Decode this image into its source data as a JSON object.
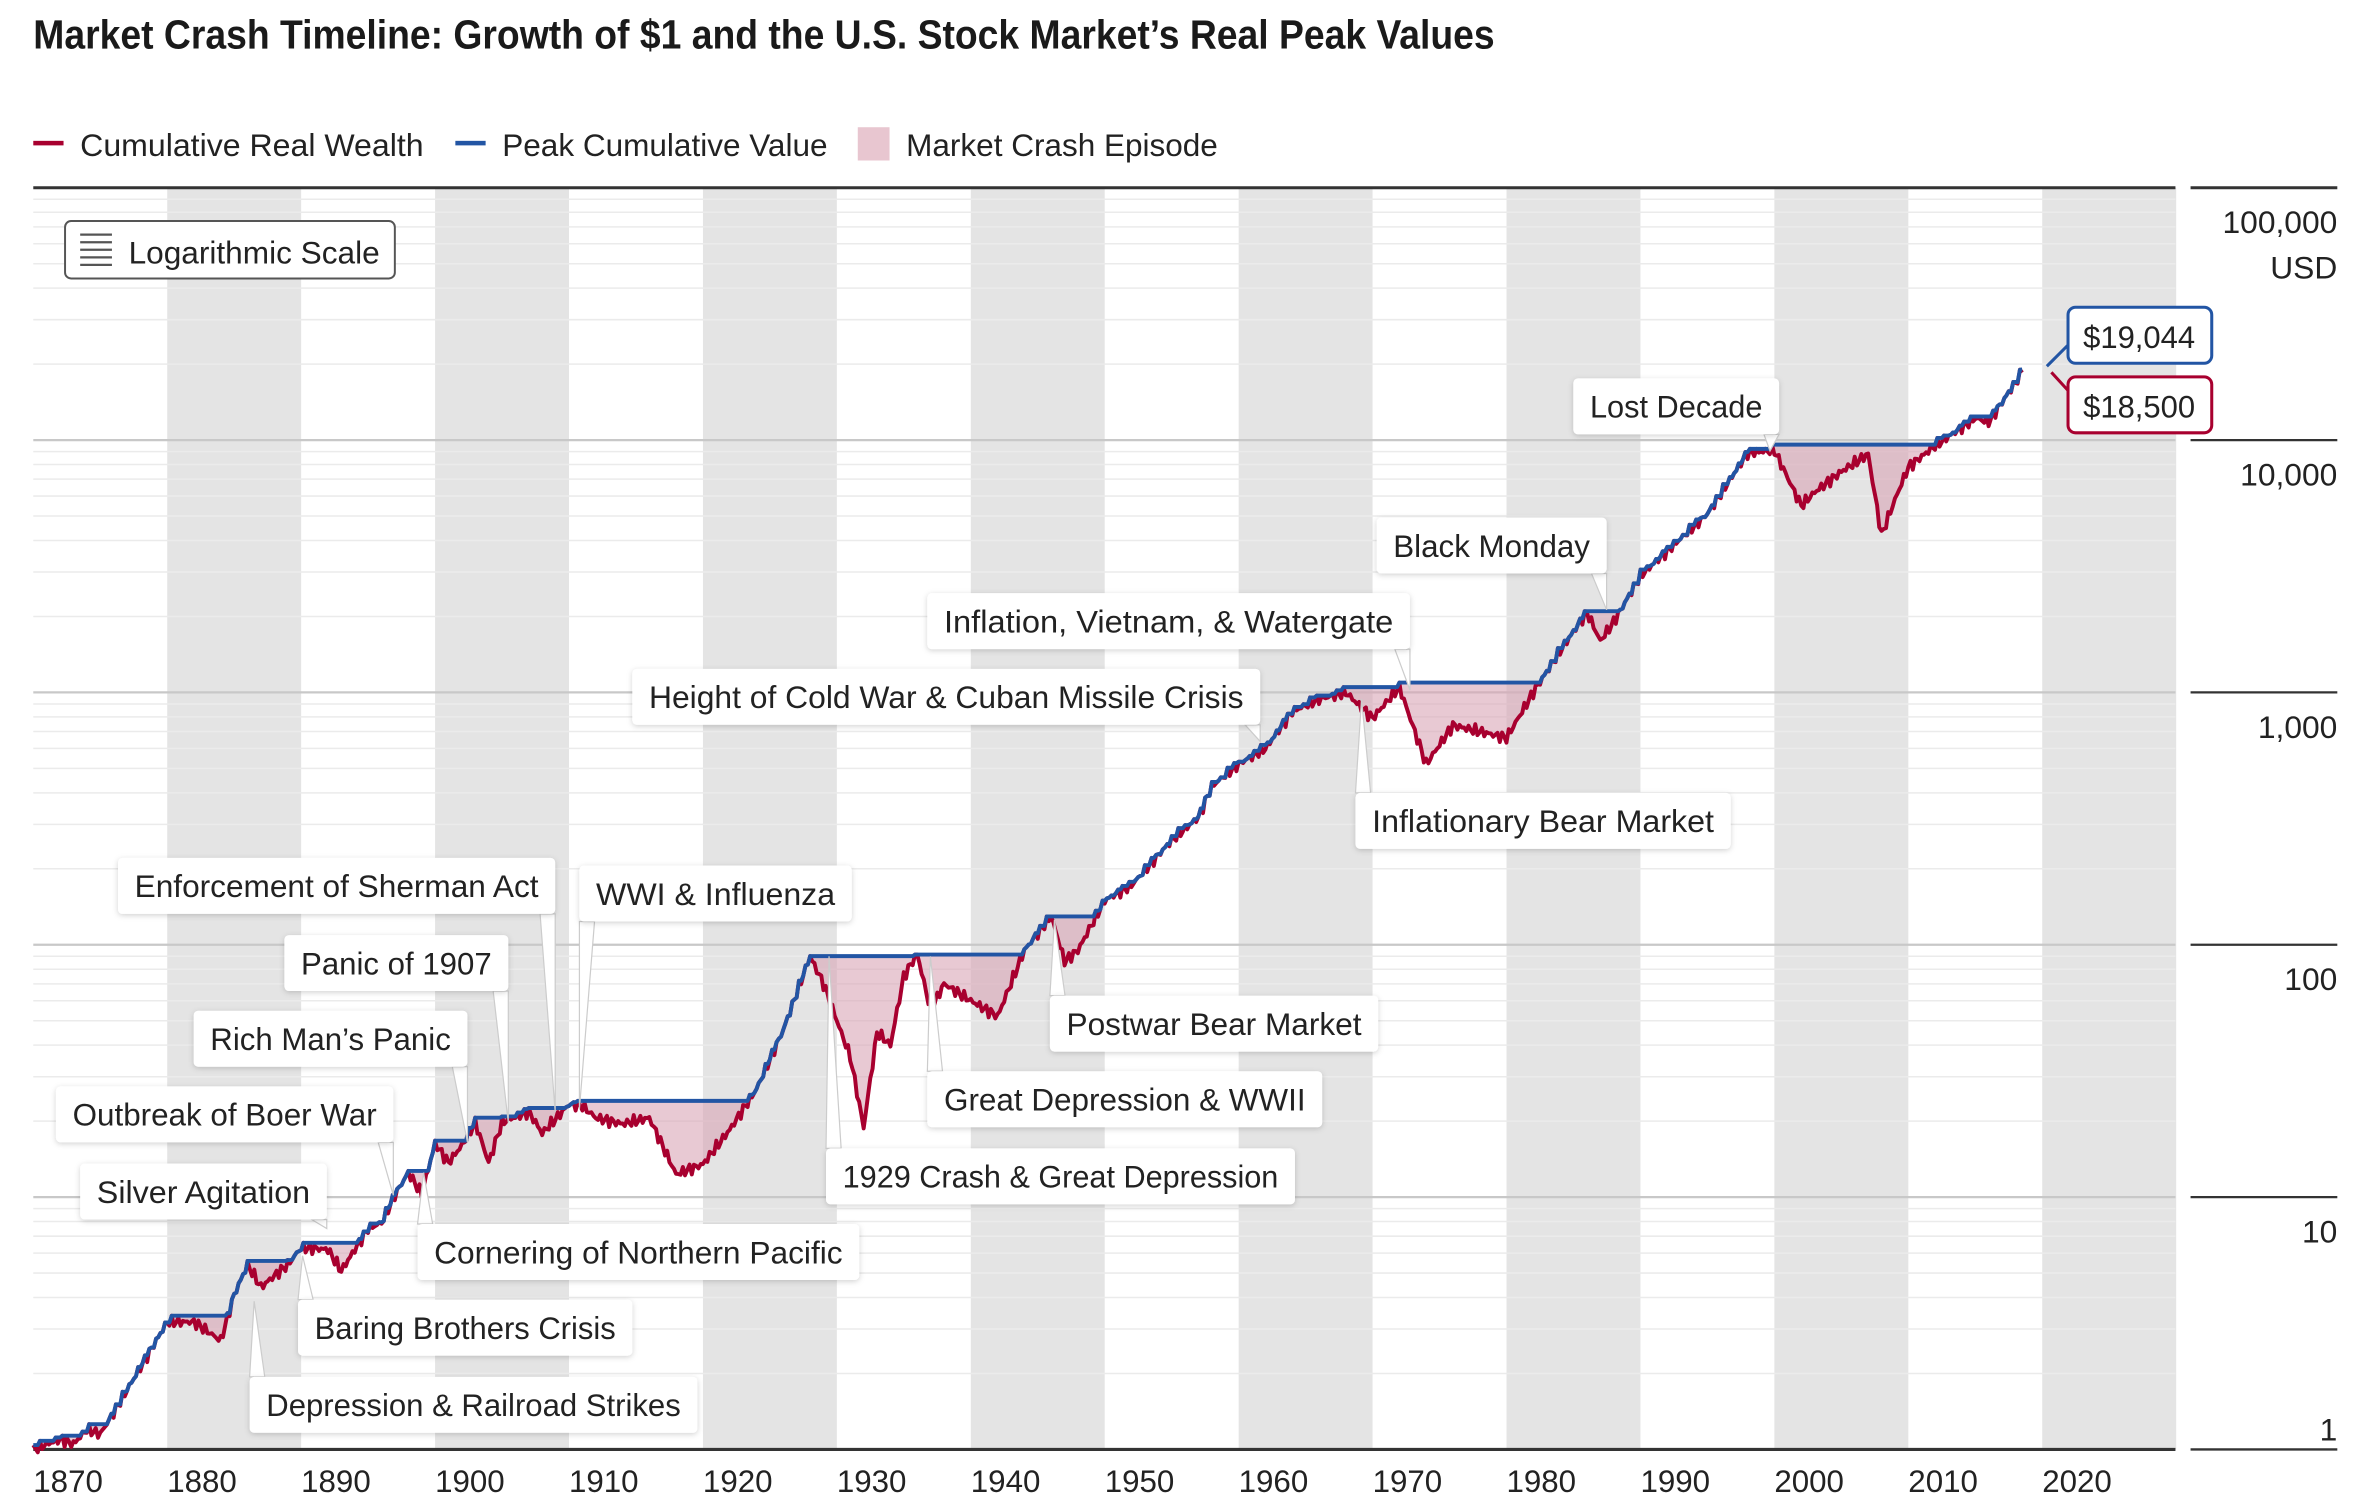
{
  "chart_data": {
    "type": "line",
    "title": "Market Crash Timeline: Growth of $1 and the U.S. Stock Market’s Real Peak Values",
    "legend": {
      "position": "top-left",
      "items": [
        {
          "label": "Cumulative Real Wealth",
          "color": "#A8002F"
        },
        {
          "label": "Peak Cumulative Value",
          "color": "#2255A4"
        },
        {
          "label": "Market Crash Episode",
          "color": "#E8C6D0"
        }
      ]
    },
    "scale_button": "Logarithmic Scale",
    "y_axis": {
      "scale": "log",
      "unit": "USD",
      "range": [
        1,
        100000
      ],
      "ticks": [
        {
          "v": 1,
          "t": "1"
        },
        {
          "v": 10,
          "t": "10"
        },
        {
          "v": 100,
          "t": "100"
        },
        {
          "v": 1000,
          "t": "1,000"
        },
        {
          "v": 10000,
          "t": "10,000"
        },
        {
          "v": 100000,
          "t": "100,000"
        }
      ]
    },
    "x_axis": {
      "range": [
        1870,
        2030
      ],
      "ticks": [
        1870,
        1880,
        1890,
        1900,
        1910,
        1920,
        1930,
        1940,
        1950,
        1960,
        1970,
        1980,
        1990,
        2000,
        2010,
        2020
      ]
    },
    "shaded_decades": [
      1880,
      1900,
      1920,
      1940,
      1960,
      1980,
      2000,
      2020
    ],
    "series": [
      {
        "name": "Cumulative Real Wealth",
        "points": [
          [
            1870,
            1
          ],
          [
            1872,
            1.1
          ],
          [
            1873,
            1.05
          ],
          [
            1874,
            1.2
          ],
          [
            1875,
            1.15
          ],
          [
            1876,
            1.4
          ],
          [
            1880,
            3.2
          ],
          [
            1882,
            3.2
          ],
          [
            1884,
            2.7
          ],
          [
            1885,
            4.1
          ],
          [
            1886,
            5.4
          ],
          [
            1887,
            4.4
          ],
          [
            1889,
            5.4
          ],
          [
            1890,
            6.3
          ],
          [
            1892,
            6.2
          ],
          [
            1893,
            5.1
          ],
          [
            1895,
            7.5
          ],
          [
            1896,
            7.9
          ],
          [
            1897,
            10.2
          ],
          [
            1898,
            12.5
          ],
          [
            1899,
            10.3
          ],
          [
            1900,
            16.3
          ],
          [
            1901,
            13.7
          ],
          [
            1902,
            16
          ],
          [
            1903,
            19.8
          ],
          [
            1904,
            13.7
          ],
          [
            1905,
            19.8
          ],
          [
            1907,
            21.8
          ],
          [
            1908,
            17.9
          ],
          [
            1910,
            23.3
          ],
          [
            1911,
            23
          ],
          [
            1912,
            20.6
          ],
          [
            1914,
            19.5
          ],
          [
            1916,
            20.6
          ],
          [
            1918,
            12.3
          ],
          [
            1920,
            13.5
          ],
          [
            1922,
            18.5
          ],
          [
            1924,
            26.8
          ],
          [
            1926,
            46
          ],
          [
            1928,
            90
          ],
          [
            1929,
            70
          ],
          [
            1930,
            50
          ],
          [
            1931,
            36
          ],
          [
            1932,
            18.9
          ],
          [
            1933,
            45
          ],
          [
            1934,
            40
          ],
          [
            1935,
            75
          ],
          [
            1936,
            92
          ],
          [
            1937,
            55
          ],
          [
            1938,
            70
          ],
          [
            1940,
            60
          ],
          [
            1942,
            52
          ],
          [
            1944,
            95
          ],
          [
            1946,
            130
          ],
          [
            1947,
            86
          ],
          [
            1948,
            95
          ],
          [
            1950,
            150
          ],
          [
            1952,
            172
          ],
          [
            1955,
            260
          ],
          [
            1957,
            320
          ],
          [
            1958,
            425
          ],
          [
            1960,
            520
          ],
          [
            1962,
            600
          ],
          [
            1964,
            840
          ],
          [
            1966,
            940
          ],
          [
            1968,
            1000
          ],
          [
            1970,
            790
          ],
          [
            1972,
            1050
          ],
          [
            1974,
            520
          ],
          [
            1976,
            740
          ],
          [
            1978,
            700
          ],
          [
            1980,
            660
          ],
          [
            1982,
            1000
          ],
          [
            1984,
            1460
          ],
          [
            1986,
            2080
          ],
          [
            1987,
            1600
          ],
          [
            1988,
            1900
          ],
          [
            1990,
            2900
          ],
          [
            1995,
            5100
          ],
          [
            1998,
            8900
          ],
          [
            2000,
            9100
          ],
          [
            2002,
            5500
          ],
          [
            2003,
            6200
          ],
          [
            2005,
            7500
          ],
          [
            2007,
            8800
          ],
          [
            2008,
            4200
          ],
          [
            2009,
            5800
          ],
          [
            2010,
            7800
          ],
          [
            2012,
            9500
          ],
          [
            2015,
            12200
          ],
          [
            2016,
            11800
          ],
          [
            2018.5,
            18500
          ]
        ]
      },
      {
        "name": "Peak Cumulative Value",
        "derived": "running maximum of cumulative real wealth",
        "final_value": 19044
      }
    ],
    "end_labels": {
      "peak": "$19,044",
      "wealth": "$18,500"
    },
    "episodes": [
      {
        "label": "Depression & Railroad Strikes"
      },
      {
        "label": "Baring Brothers Crisis"
      },
      {
        "label": "Silver Agitation"
      },
      {
        "label": "Outbreak of Boer War"
      },
      {
        "label": "Cornering of Northern Pacific"
      },
      {
        "label": "Rich Man’s Panic"
      },
      {
        "label": "Panic of 1907"
      },
      {
        "label": "Enforcement of Sherman Act"
      },
      {
        "label": "WWI & Influenza"
      },
      {
        "label": "1929 Crash & Great Depression"
      },
      {
        "label": "Great Depression & WWII"
      },
      {
        "label": "Postwar Bear Market"
      },
      {
        "label": "Height of Cold War & Cuban Missile Crisis"
      },
      {
        "label": "Inflation, Vietnam, & Watergate"
      },
      {
        "label": "Inflationary Bear Market"
      },
      {
        "label": "Black Monday"
      },
      {
        "label": "Lost Decade"
      }
    ]
  }
}
